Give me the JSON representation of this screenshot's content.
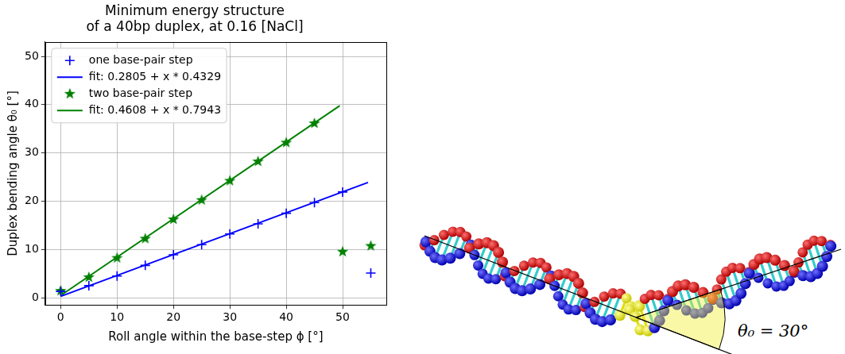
{
  "chart_data": {
    "type": "scatter",
    "title": [
      "Minimum energy structure",
      "of a 40bp duplex, at 0.16 [NaCl]"
    ],
    "x_label": "Roll angle within the base-step ϕ [°]",
    "y_label": "Duplex bending angle θ₀ [°]",
    "xlim": [
      -2.75,
      57.75
    ],
    "ylim": [
      -1.5,
      53
    ],
    "xticks": [
      0,
      10,
      20,
      30,
      40,
      50
    ],
    "yticks": [
      0,
      10,
      20,
      30,
      40,
      50
    ],
    "grid": true,
    "legend": "upper left",
    "series": [
      {
        "name": "one base-pair step",
        "type": "scatter",
        "marker": "+",
        "color": "#0000ff",
        "x": [
          0,
          5,
          10,
          15,
          20,
          25,
          30,
          35,
          40,
          45,
          50,
          55
        ],
        "values": [
          1.3,
          2.5,
          4.5,
          6.7,
          8.9,
          11.0,
          13.2,
          15.3,
          17.5,
          19.7,
          21.9,
          5.1
        ]
      },
      {
        "name": "fit: 0.2805 + x * 0.4329",
        "type": "line",
        "line_style": "solid",
        "color": "#0000ff",
        "x": [
          0,
          54.5
        ],
        "values": [
          0.28,
          23.87
        ]
      },
      {
        "name": "two base-pair step",
        "type": "scatter",
        "marker": "*",
        "color": "#008000",
        "x": [
          0,
          5,
          10,
          15,
          20,
          25,
          30,
          35,
          40,
          45,
          50,
          55
        ],
        "values": [
          1.5,
          4.3,
          8.3,
          12.3,
          16.3,
          20.3,
          24.3,
          28.3,
          32.2,
          36.2,
          9.6,
          10.8
        ]
      },
      {
        "name": "fit: 0.4608 + x * 0.7943",
        "type": "line",
        "line_style": "solid",
        "color": "#008000",
        "x": [
          0,
          49.5
        ],
        "values": [
          0.46,
          39.78
        ]
      }
    ]
  },
  "diagram": {
    "angle_label": "θ₀ = 30°"
  }
}
